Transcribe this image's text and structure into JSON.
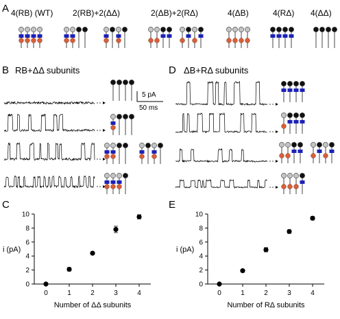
{
  "panel_letters": {
    "a": "A",
    "b": "B",
    "c": "C",
    "d": "D",
    "e": "E"
  },
  "panel_a": {
    "constructs": [
      {
        "label": "4(RB) (WT)",
        "top": [
          "gray",
          "gray",
          "gray",
          "gray"
        ],
        "gate": [
          1,
          1,
          1,
          1
        ],
        "ball": [
          1,
          1,
          1,
          1
        ]
      },
      {
        "label": "2(RB)+2(ΔΔ)",
        "top": [
          "gray",
          "gray",
          "black",
          "black"
        ],
        "gate": [
          1,
          1,
          0,
          0
        ],
        "ball": [
          1,
          1,
          0,
          0
        ],
        "alt": {
          "top": [
            "gray",
            "black",
            "gray",
            "black"
          ],
          "gate": [
            1,
            0,
            1,
            0
          ],
          "ball": [
            1,
            0,
            1,
            0
          ]
        }
      },
      {
        "label": "2(ΔB)+2(RΔ)",
        "top": [
          "gray",
          "gray",
          "black",
          "black"
        ],
        "gate": [
          0,
          0,
          1,
          1
        ],
        "ball": [
          1,
          1,
          0,
          0
        ],
        "alt": {
          "top": [
            "gray",
            "black",
            "gray",
            "black"
          ],
          "gate": [
            0,
            1,
            0,
            1
          ],
          "ball": [
            1,
            0,
            1,
            0
          ]
        }
      },
      {
        "label": "4(ΔB)",
        "top": [
          "gray",
          "gray",
          "gray",
          "gray"
        ],
        "gate": [
          0,
          0,
          0,
          0
        ],
        "ball": [
          1,
          1,
          1,
          1
        ]
      },
      {
        "label": "4(RΔ)",
        "top": [
          "black",
          "black",
          "black",
          "black"
        ],
        "gate": [
          1,
          1,
          1,
          1
        ],
        "ball": [
          0,
          0,
          0,
          0
        ]
      },
      {
        "label": "4(ΔΔ)",
        "top": [
          "black",
          "black",
          "black",
          "black"
        ],
        "gate": [
          0,
          0,
          0,
          0
        ],
        "ball": [
          0,
          0,
          0,
          0
        ]
      }
    ]
  },
  "panel_b": {
    "title": "RB+ΔΔ subunits"
  },
  "panel_d": {
    "title": "ΔB+RΔ subunits"
  },
  "scale_bar": {
    "current": "5 pA",
    "time": "50 ms"
  },
  "colors": {
    "gate": "#1c22b8",
    "ball": "#d8603a",
    "gray_cap": "#c4c4c4",
    "black_cap": "#111111"
  },
  "chart_data": [
    {
      "type": "scatter",
      "panel": "C",
      "xlabel": "Number of ΔΔ subunits",
      "ylabel": "i (pA)",
      "x": [
        0,
        1,
        2,
        3,
        4
      ],
      "y": [
        0.0,
        2.1,
        4.4,
        7.8,
        9.6
      ],
      "err": [
        0.05,
        0.25,
        0.2,
        0.45,
        0.3
      ],
      "xlim": [
        -0.5,
        4.5
      ],
      "ylim": [
        0,
        10
      ],
      "xticks": [
        "0",
        "1",
        "2",
        "3",
        "4"
      ],
      "yticks": [
        "0",
        "2",
        "4",
        "6",
        "8",
        "10"
      ]
    },
    {
      "type": "scatter",
      "panel": "E",
      "xlabel": "Number of RΔ subunits",
      "ylabel": "i (pA)",
      "x": [
        0,
        1,
        2,
        3,
        4
      ],
      "y": [
        0.0,
        1.9,
        4.9,
        7.5,
        9.4
      ],
      "err": [
        0.05,
        0.2,
        0.3,
        0.25,
        0.25
      ],
      "xlim": [
        -0.5,
        4.5
      ],
      "ylim": [
        0,
        10
      ],
      "xticks": [
        "0",
        "1",
        "2",
        "3",
        "4"
      ],
      "yticks": [
        "0",
        "2",
        "4",
        "6",
        "8",
        "10"
      ]
    }
  ]
}
